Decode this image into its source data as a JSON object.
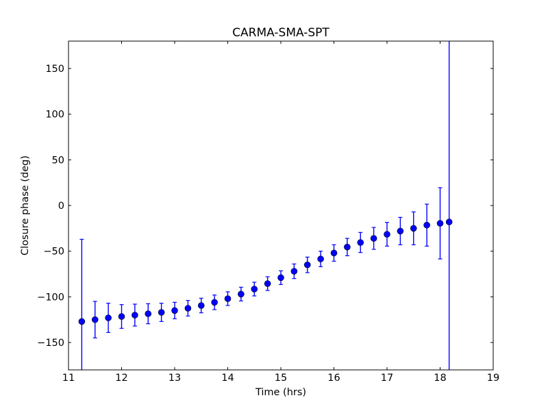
{
  "chart_data": {
    "type": "scatter",
    "title": "CARMA-SMA-SPT",
    "xlabel": "Time (hrs)",
    "ylabel": "Closure phase (deg)",
    "xlim": [
      11,
      19
    ],
    "ylim": [
      -180,
      180
    ],
    "xticks": [
      11,
      12,
      13,
      14,
      15,
      16,
      17,
      18,
      19
    ],
    "yticks": [
      -150,
      -100,
      -50,
      0,
      50,
      100,
      150
    ],
    "ytick_labels": [
      "−150",
      "−100",
      "−50",
      "0",
      "50",
      "100",
      "150"
    ],
    "grid": false,
    "color": "#0000ff",
    "series": [
      {
        "name": "CARMA-SMA-SPT",
        "x": [
          11.25,
          11.5,
          11.75,
          12.0,
          12.25,
          12.5,
          12.75,
          13.0,
          13.25,
          13.5,
          13.75,
          14.0,
          14.25,
          14.5,
          14.75,
          15.0,
          15.25,
          15.5,
          15.75,
          16.0,
          16.25,
          16.5,
          16.75,
          17.0,
          17.25,
          17.5,
          17.75,
          18.0,
          18.17
        ],
        "y": [
          -127,
          -125,
          -123,
          -121.5,
          -120,
          -118.5,
          -117,
          -115,
          -112.5,
          -109.5,
          -106,
          -102,
          -97,
          -91.5,
          -85.5,
          -79,
          -72,
          -65,
          -58.5,
          -52,
          -45.5,
          -40.5,
          -36,
          -31.5,
          -28,
          -25,
          -21.5,
          -19.5,
          -18
        ],
        "yerr": [
          90,
          20,
          16,
          13,
          12,
          11,
          10,
          9,
          8.5,
          8,
          8,
          7.5,
          7.5,
          7.5,
          7.5,
          7.5,
          8,
          8.5,
          8.5,
          9,
          9.5,
          11,
          12,
          13,
          15,
          18,
          23,
          39,
          250
        ]
      }
    ]
  }
}
